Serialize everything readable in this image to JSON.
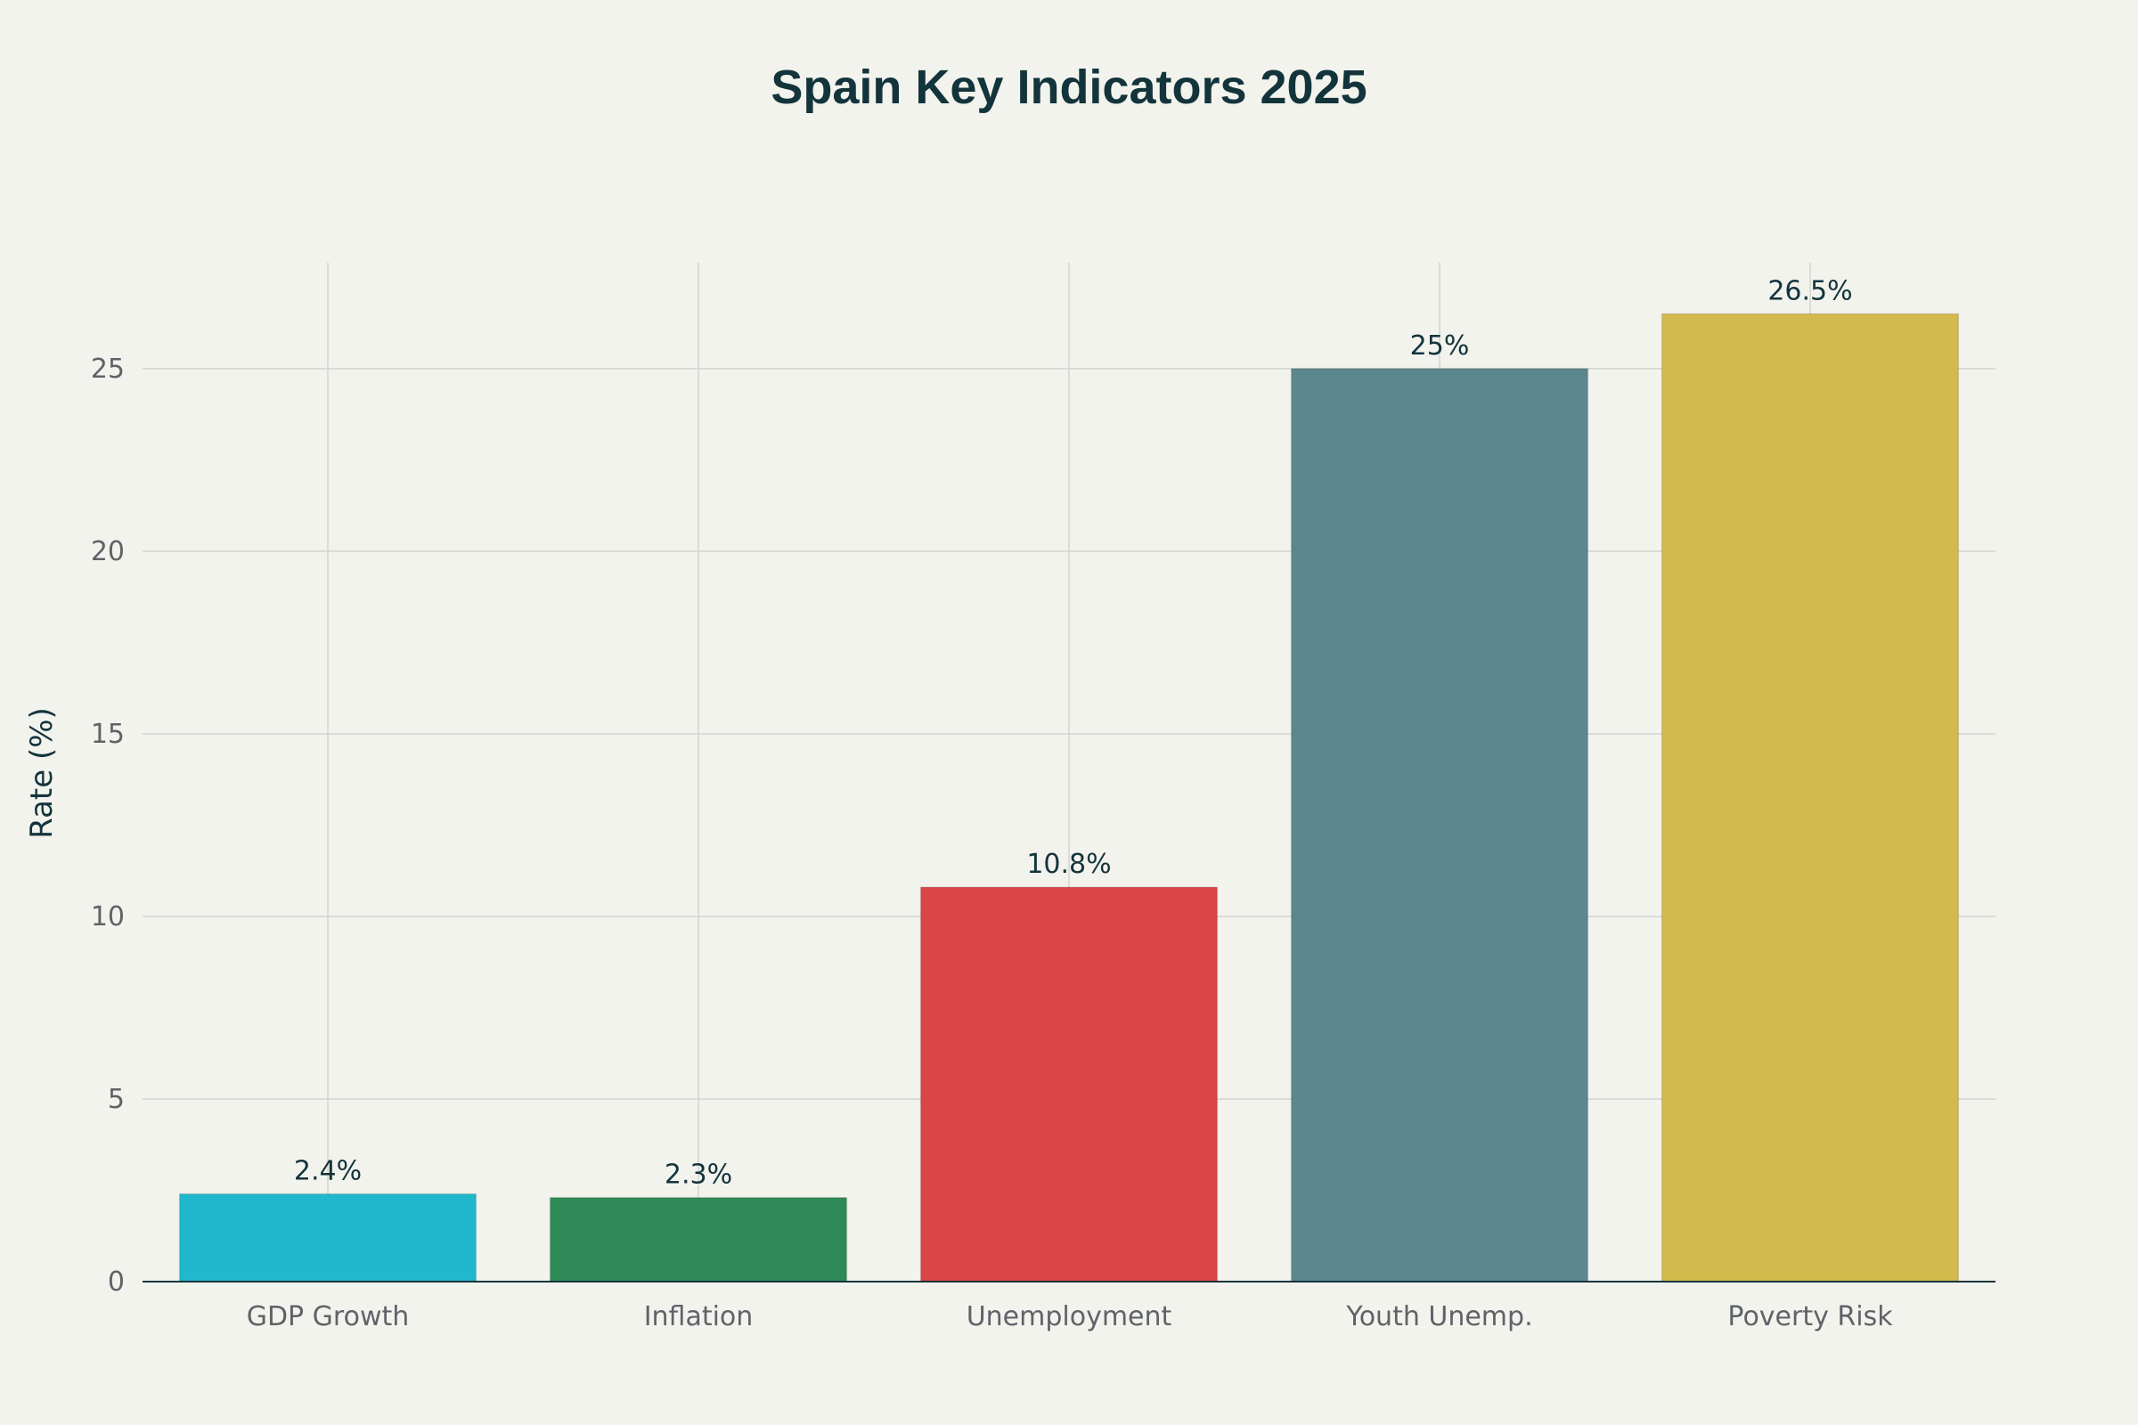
{
  "chart_data": {
    "type": "bar",
    "title": "Spain Key Indicators 2025",
    "xlabel": "",
    "ylabel": "Rate (%)",
    "categories": [
      "GDP Growth",
      "Inflation",
      "Unemployment",
      "Youth Unemp.",
      "Poverty Risk"
    ],
    "values": [
      2.4,
      2.3,
      10.8,
      25,
      26.5
    ],
    "data_labels": [
      "2.4%",
      "2.3%",
      "10.8%",
      "25%",
      "26.5%"
    ],
    "colors": [
      "#21b8cd",
      "#2e8b57",
      "#db4545",
      "#5d878f",
      "#d2ba4c"
    ],
    "ylim": [
      0,
      27.9
    ],
    "yticks": [
      0,
      5,
      10,
      15,
      20,
      25
    ],
    "ytick_labels": [
      "0",
      "5",
      "10",
      "15",
      "20",
      "25"
    ],
    "grid": true,
    "legend": "none"
  }
}
